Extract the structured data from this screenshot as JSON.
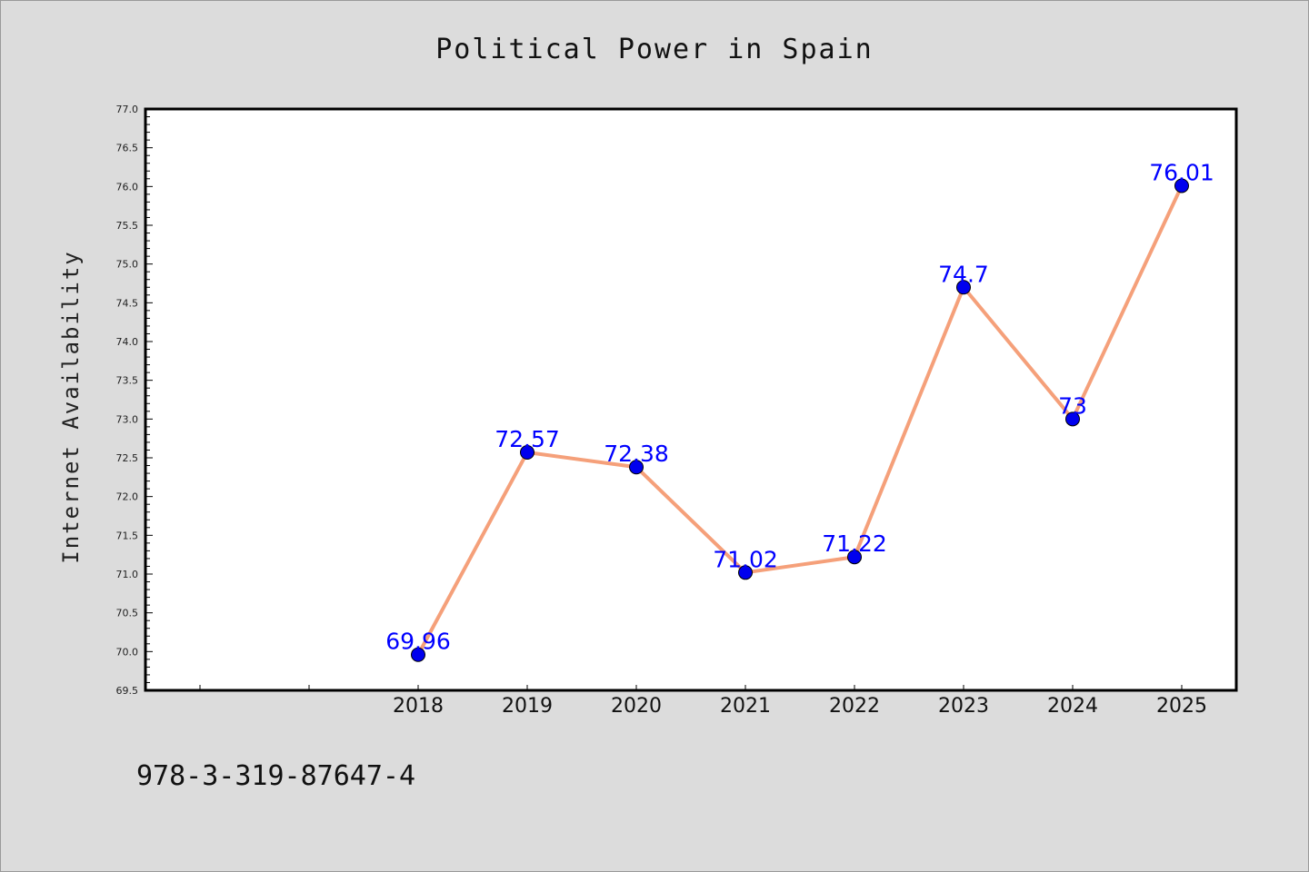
{
  "chart_data": {
    "type": "line",
    "title": "Political Power in Spain",
    "xlabel": "",
    "ylabel": "Internet Availability",
    "categories": [
      "2018",
      "2019",
      "2020",
      "2021",
      "2022",
      "2023",
      "2024",
      "2025"
    ],
    "values": [
      69.96,
      72.57,
      72.38,
      71.02,
      71.22,
      74.7,
      73,
      76.01
    ],
    "data_labels": [
      "69.96",
      "72.57",
      "72.38",
      "71.02",
      "71.22",
      "74.7",
      "73",
      "76.01"
    ],
    "ylim": [
      69.5,
      77.0
    ],
    "yticks": [
      "69.5",
      "70.0",
      "70.5",
      "71.0",
      "71.5",
      "72.0",
      "72.5",
      "73.0",
      "73.5",
      "74.0",
      "74.5",
      "75.0",
      "75.5",
      "76.0",
      "76.5",
      "77.0"
    ],
    "grid": false,
    "legend": "none",
    "line_color": "#f5a07a",
    "marker_color": "#0000ee",
    "label_color": "#0000ff",
    "annotation": "978-3-319-87647-4"
  }
}
